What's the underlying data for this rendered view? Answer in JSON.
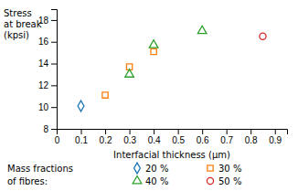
{
  "chart_data": {
    "type": "scatter",
    "xlabel": "Interfacial thickness (μm)",
    "ylabel": "Stress\nat break\n(kpsi)",
    "legend_title": "Mass fractions\nof fibres:",
    "series": [
      {
        "name": "20 %",
        "marker": "diamond",
        "x": [
          0.1
        ],
        "values": [
          10.1
        ]
      },
      {
        "name": "30 %",
        "marker": "square",
        "x": [
          0.2,
          0.3,
          0.4
        ],
        "values": [
          11.1,
          13.7,
          15.1
        ]
      },
      {
        "name": "40 %",
        "marker": "triangle",
        "x": [
          0.3,
          0.4,
          0.6
        ],
        "values": [
          13.0,
          15.7,
          17.0
        ]
      },
      {
        "name": "50 %",
        "marker": "circle",
        "x": [
          0.85
        ],
        "values": [
          16.5
        ]
      }
    ],
    "xlim": [
      0,
      0.95
    ],
    "ylim": [
      8,
      19
    ],
    "xticks": [
      0,
      0.1,
      0.2,
      0.3,
      0.4,
      0.5,
      0.6,
      0.7,
      0.8,
      0.9
    ],
    "yticks": [
      8,
      10,
      12,
      14,
      16,
      18
    ]
  }
}
